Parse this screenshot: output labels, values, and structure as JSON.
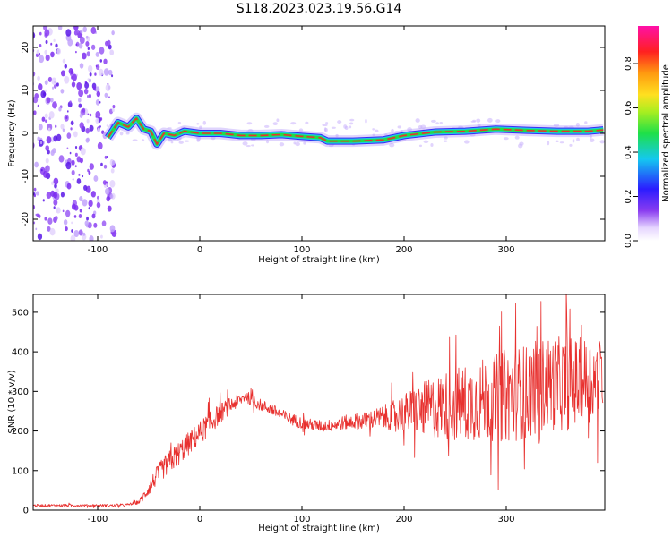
{
  "title": "S118.2023.023.19.56.G14",
  "colors": {
    "snr_line": "#e8312f",
    "ridge_core": "#e8312f",
    "ridge_mid": "#22dd44",
    "ridge_edge": "#1fc6e6",
    "speckle": "#7b2cf0",
    "axes": "#000000"
  },
  "colorbar": {
    "label": "Normalized spectral amplitude",
    "ticks": [
      "0.0",
      "0.2",
      "0.4",
      "0.6",
      "0.8"
    ],
    "range": [
      0,
      0.97
    ],
    "colormap": "rainbow (white-purple-blue-cyan-green-yellow-orange-red-magenta)"
  },
  "chart_data": [
    {
      "type": "heatmap",
      "xlabel": "Height of straight line (km)",
      "ylabel": "Frequency (Hz)",
      "xlim": [
        -165,
        395
      ],
      "ylim": [
        -25,
        25
      ],
      "xticks": [
        "-100",
        "0",
        "100",
        "200",
        "300"
      ],
      "yticks": [
        "-20",
        "-10",
        "0",
        "10",
        "20"
      ],
      "noise_region_x": [
        -165,
        -90
      ],
      "ridge_frequency": {
        "x": [
          -90,
          -80,
          -70,
          -62,
          -55,
          -48,
          -42,
          -35,
          -25,
          -15,
          0,
          20,
          40,
          60,
          80,
          100,
          118,
          125,
          150,
          180,
          200,
          230,
          260,
          290,
          320,
          350,
          380,
          395
        ],
        "y": [
          -1,
          2.5,
          1.5,
          3.5,
          1,
          0.5,
          -2.5,
          0,
          -0.5,
          0.5,
          0,
          0,
          -0.5,
          -0.5,
          -0.3,
          -0.7,
          -1,
          -1.8,
          -1.8,
          -1.5,
          -0.5,
          0.3,
          0.5,
          1.0,
          0.7,
          0.5,
          0.5,
          0.8
        ]
      }
    },
    {
      "type": "line",
      "xlabel": "Height of straight line (km)",
      "ylabel": "SNR (10 * v/v)",
      "xlim": [
        -165,
        395
      ],
      "ylim": [
        0,
        545
      ],
      "xticks": [
        "-100",
        "0",
        "100",
        "200",
        "300"
      ],
      "yticks": [
        "0",
        "100",
        "200",
        "300",
        "400",
        "500"
      ],
      "series": [
        {
          "x": [
            -165,
            -140,
            -120,
            -100,
            -80,
            -70,
            -60,
            -55,
            -50,
            -45,
            -40,
            -30,
            -20,
            -10,
            0,
            10,
            20,
            30,
            40,
            45,
            50,
            60,
            70,
            80,
            90,
            100,
            110,
            120,
            130,
            140,
            150,
            160,
            170,
            180,
            190,
            200,
            210,
            220,
            230,
            240,
            250,
            260,
            270,
            280,
            290,
            300,
            310,
            320,
            330,
            340,
            350,
            360,
            370,
            380,
            395
          ],
          "y": [
            12,
            12,
            12,
            12,
            12,
            14,
            20,
            35,
            55,
            75,
            95,
            120,
            145,
            170,
            195,
            220,
            245,
            265,
            278,
            290,
            278,
            265,
            255,
            240,
            230,
            220,
            215,
            212,
            215,
            220,
            225,
            225,
            230,
            235,
            240,
            245,
            250,
            255,
            260,
            262,
            265,
            270,
            275,
            280,
            285,
            290,
            295,
            300,
            310,
            320,
            320,
            320,
            325,
            330,
            335
          ],
          "noise_amplitude": [
            3,
            3,
            3,
            3,
            3,
            3,
            5,
            12,
            18,
            22,
            25,
            30,
            30,
            30,
            30,
            30,
            25,
            20,
            15,
            15,
            15,
            15,
            15,
            15,
            15,
            15,
            15,
            15,
            15,
            18,
            20,
            22,
            25,
            30,
            40,
            50,
            60,
            70,
            80,
            90,
            95,
            100,
            100,
            110,
            110,
            120,
            120,
            120,
            120,
            120,
            120,
            120,
            110,
            110,
            100
          ]
        }
      ]
    }
  ]
}
